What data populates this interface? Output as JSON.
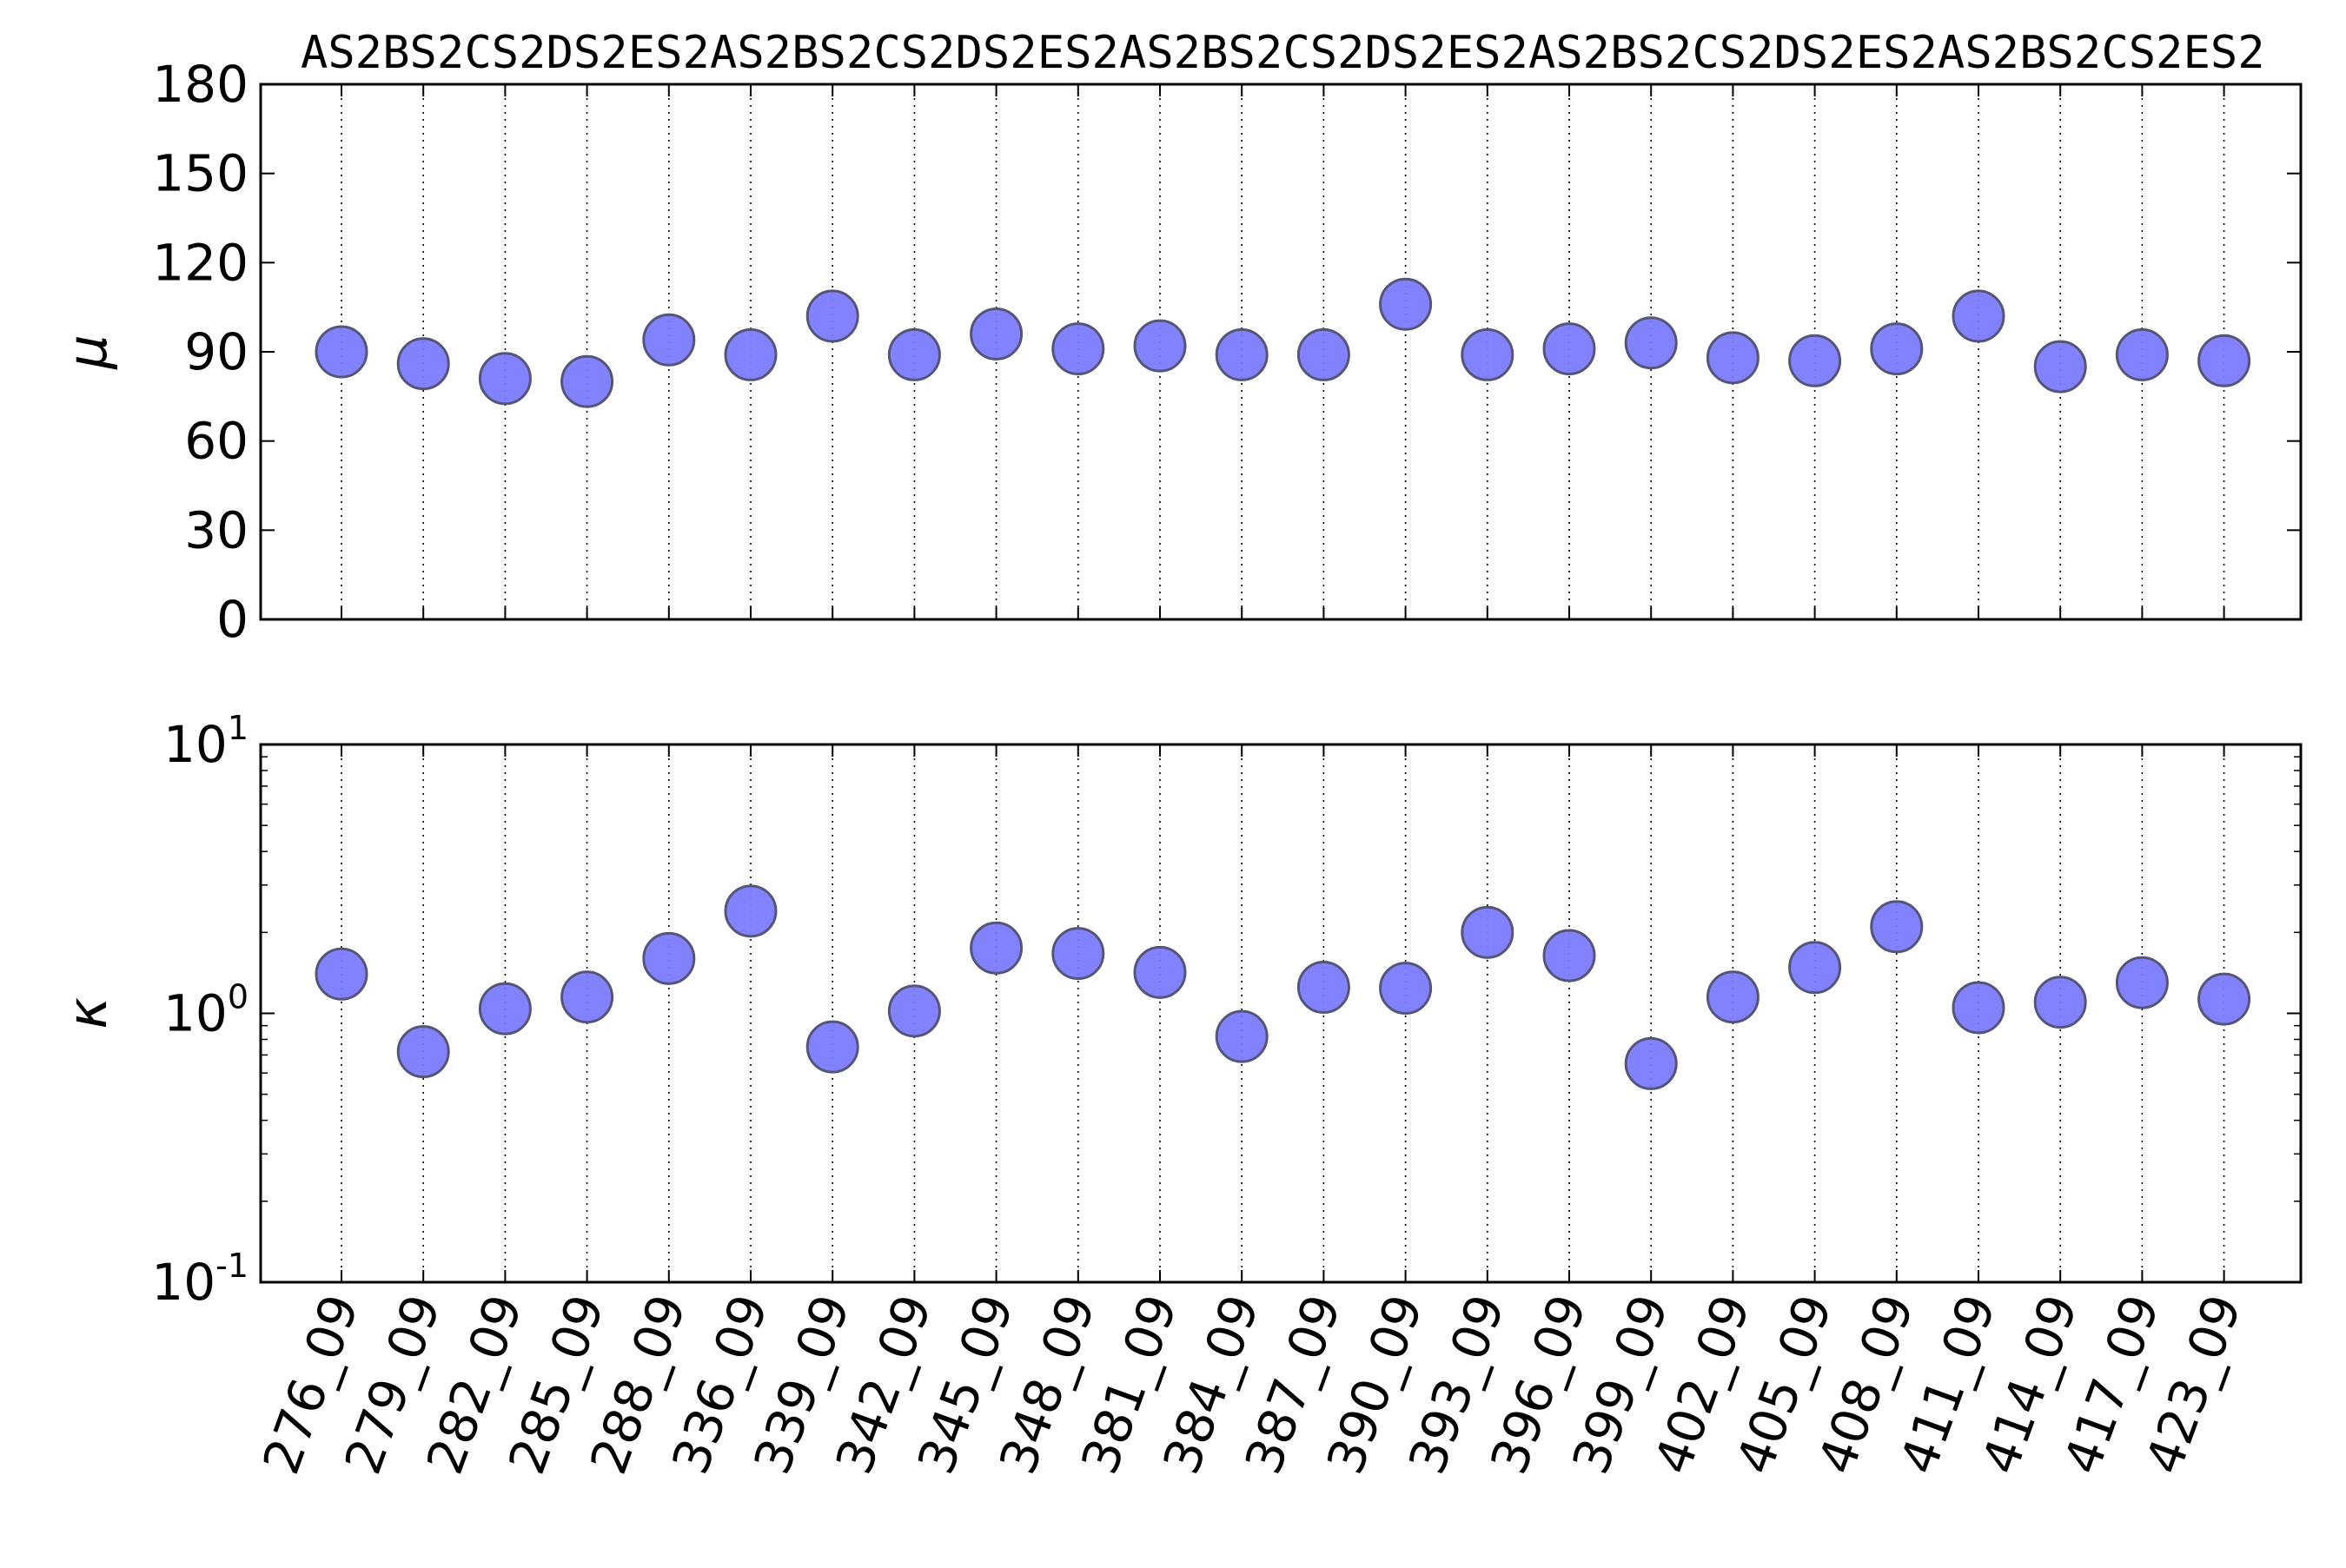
{
  "chart_data": [
    {
      "type": "scatter",
      "panel": "top",
      "ylabel": "μ",
      "ylim": [
        0,
        180
      ],
      "yticks": [
        "0",
        "30",
        "60",
        "90",
        "120",
        "150",
        "180"
      ],
      "categories": [
        "276_09",
        "279_09",
        "282_09",
        "285_09",
        "288_09",
        "336_09",
        "339_09",
        "342_09",
        "345_09",
        "348_09",
        "381_09",
        "384_09",
        "387_09",
        "390_09",
        "393_09",
        "396_09",
        "399_09",
        "402_09",
        "405_09",
        "408_09",
        "411_09",
        "414_09",
        "417_09",
        "423_09"
      ],
      "top_labels": [
        "AS2",
        "BS2",
        "CS2",
        "DS2",
        "ES2",
        "AS2",
        "BS2",
        "CS2",
        "DS2",
        "ES2",
        "AS2",
        "BS2",
        "CS2",
        "DS2",
        "ES2",
        "AS2",
        "BS2",
        "CS2",
        "DS2",
        "ES2",
        "AS2",
        "BS2",
        "CS2",
        "ES2"
      ],
      "values": [
        90,
        86,
        81,
        80,
        94,
        89,
        102,
        89,
        96,
        91,
        92,
        89,
        89,
        106,
        89,
        91,
        93,
        88,
        87,
        91,
        102,
        85,
        89,
        87
      ],
      "grid": "vertical dotted",
      "marker_color": "#7b7bff"
    },
    {
      "type": "scatter",
      "panel": "bottom",
      "ylabel": "κ",
      "yscale": "log",
      "ylim": [
        0.1,
        10
      ],
      "yticks": [
        {
          "base": "10",
          "exp": "-1"
        },
        {
          "base": "10",
          "exp": "0"
        },
        {
          "base": "10",
          "exp": "1"
        }
      ],
      "categories": [
        "276_09",
        "279_09",
        "282_09",
        "285_09",
        "288_09",
        "336_09",
        "339_09",
        "342_09",
        "345_09",
        "348_09",
        "381_09",
        "384_09",
        "387_09",
        "390_09",
        "393_09",
        "396_09",
        "399_09",
        "402_09",
        "405_09",
        "408_09",
        "411_09",
        "414_09",
        "417_09",
        "423_09"
      ],
      "values": [
        1.4,
        0.72,
        1.04,
        1.15,
        1.6,
        2.4,
        0.75,
        1.02,
        1.75,
        1.67,
        1.42,
        0.82,
        1.25,
        1.24,
        2.0,
        1.64,
        0.65,
        1.15,
        1.48,
        2.1,
        1.05,
        1.1,
        1.3,
        1.13
      ],
      "grid": "vertical dotted",
      "marker_color": "#7b7bff"
    }
  ]
}
